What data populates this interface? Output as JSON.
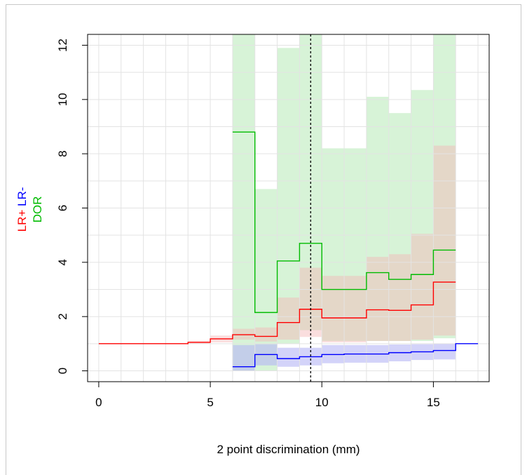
{
  "chart_data": {
    "type": "line",
    "xlabel": "2 point discrimination (mm)",
    "ylabel_parts": [
      {
        "text": "LR+",
        "color": "#ff0000"
      },
      {
        "text": "LR-",
        "color": "#0000ff"
      },
      {
        "text": "DOR",
        "color": "#00bb00"
      }
    ],
    "xlim": [
      -0.5,
      17.5
    ],
    "ylim": [
      -0.4,
      12.4
    ],
    "xticks": [
      0,
      5,
      10,
      15
    ],
    "yticks": [
      0,
      2,
      4,
      6,
      8,
      10,
      12
    ],
    "grid": true,
    "threshold_x": 9.5,
    "colors": {
      "lr_pos": "#ff0000",
      "lr_neg": "#0000ff",
      "dor": "#00bb00",
      "dor_band": "#b7eab7",
      "lr_pos_band": "#f5b5b5",
      "lr_neg_band": "#b5b5f5",
      "threshold": "#000000"
    },
    "series": [
      {
        "name": "LR+",
        "color": "#ff0000",
        "steps": [
          [
            0,
            1.0
          ],
          [
            1,
            1.0
          ],
          [
            2,
            1.0
          ],
          [
            3,
            1.0
          ],
          [
            4,
            1.05
          ],
          [
            5,
            1.18
          ],
          [
            6,
            1.33
          ],
          [
            7,
            1.27
          ],
          [
            8,
            1.78
          ],
          [
            9,
            2.27
          ],
          [
            10,
            1.95
          ],
          [
            11,
            1.95
          ],
          [
            12,
            2.25
          ],
          [
            13,
            2.23
          ],
          [
            14,
            2.43
          ],
          [
            15,
            3.27
          ]
        ],
        "end_x": 16,
        "band": [
          [
            0,
            1.0,
            1.0
          ],
          [
            1,
            1.0,
            1.0
          ],
          [
            2,
            1.0,
            1.0
          ],
          [
            3,
            1.0,
            1.0
          ],
          [
            4,
            1.0,
            1.1
          ],
          [
            5,
            1.05,
            1.3
          ],
          [
            6,
            1.15,
            1.55
          ],
          [
            7,
            1.08,
            1.6
          ],
          [
            8,
            1.15,
            2.7
          ],
          [
            9,
            1.25,
            3.8
          ],
          [
            10,
            1.05,
            3.5
          ],
          [
            11,
            1.05,
            3.5
          ],
          [
            12,
            1.1,
            4.2
          ],
          [
            13,
            1.1,
            4.3
          ],
          [
            14,
            1.15,
            5.05
          ],
          [
            15,
            1.3,
            8.3
          ]
        ]
      },
      {
        "name": "LR-",
        "color": "#0000ff",
        "steps": [
          [
            6,
            0.15
          ],
          [
            7,
            0.6
          ],
          [
            8,
            0.45
          ],
          [
            9,
            0.52
          ],
          [
            10,
            0.6
          ],
          [
            11,
            0.62
          ],
          [
            12,
            0.62
          ],
          [
            13,
            0.67
          ],
          [
            14,
            0.7
          ],
          [
            15,
            0.75
          ],
          [
            16,
            1.0
          ]
        ],
        "end_x": 17,
        "band": [
          [
            6,
            0.0,
            0.95
          ],
          [
            7,
            0.2,
            0.98
          ],
          [
            8,
            0.15,
            0.85
          ],
          [
            9,
            0.2,
            0.85
          ],
          [
            10,
            0.28,
            0.95
          ],
          [
            11,
            0.3,
            0.95
          ],
          [
            12,
            0.3,
            0.95
          ],
          [
            13,
            0.35,
            0.97
          ],
          [
            14,
            0.4,
            0.98
          ],
          [
            15,
            0.42,
            1.0
          ]
        ]
      },
      {
        "name": "DOR",
        "color": "#00bb00",
        "steps": [
          [
            6,
            8.8
          ],
          [
            7,
            2.15
          ],
          [
            8,
            4.05
          ],
          [
            9,
            4.7
          ],
          [
            10,
            3.0
          ],
          [
            11,
            3.0
          ],
          [
            12,
            3.62
          ],
          [
            13,
            3.37
          ],
          [
            14,
            3.55
          ],
          [
            15,
            4.45
          ]
        ],
        "end_x": 16,
        "band": [
          [
            6,
            0.0,
            12.4
          ],
          [
            7,
            0.0,
            6.7
          ],
          [
            8,
            1.0,
            11.9
          ],
          [
            9,
            1.5,
            12.4
          ],
          [
            10,
            1.1,
            8.2
          ],
          [
            11,
            1.1,
            8.2
          ],
          [
            12,
            1.1,
            10.1
          ],
          [
            13,
            1.1,
            9.5
          ],
          [
            14,
            1.1,
            10.35
          ],
          [
            15,
            1.2,
            12.4
          ]
        ]
      }
    ]
  }
}
